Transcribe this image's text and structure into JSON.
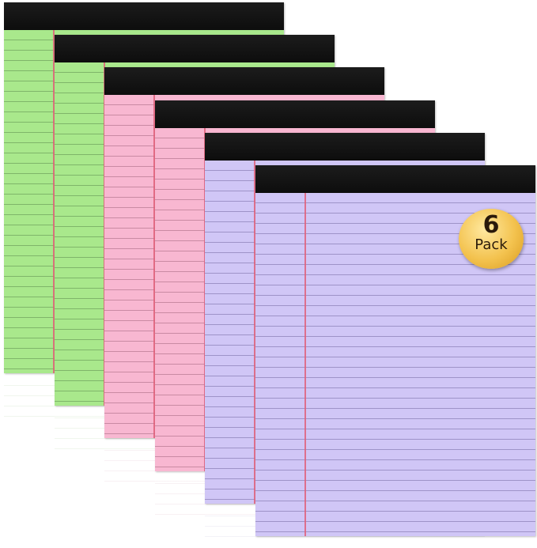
{
  "badge": {
    "number": "6",
    "label": "Pack"
  },
  "pads": [
    {
      "color": "#a9e88c",
      "line_color": "#7fb56a"
    },
    {
      "color": "#a9e88c",
      "line_color": "#7fb56a"
    },
    {
      "color": "#f8b7d1",
      "line_color": "#c98aa3"
    },
    {
      "color": "#f8b7d1",
      "line_color": "#c98aa3"
    },
    {
      "color": "#d0c6f6",
      "line_color": "#9e93c8"
    },
    {
      "color": "#d0c6f6",
      "line_color": "#9e93c8"
    }
  ],
  "colors": {
    "binding": "#111111",
    "margin_line": "#e0607a",
    "badge": "#f3c24e"
  }
}
